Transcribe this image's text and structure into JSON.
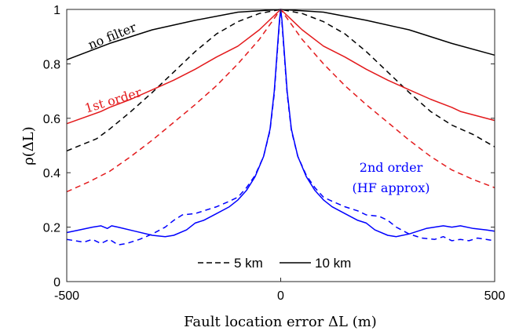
{
  "chart_data": {
    "type": "line",
    "title": "",
    "xlabel": "Fault location error ΔL (m)",
    "ylabel": "ρ(ΔL)",
    "xlim": [
      -500,
      500
    ],
    "ylim": [
      0,
      1
    ],
    "xticks": [
      "-500",
      "0",
      "500"
    ],
    "yticks": [
      "0",
      "0.2",
      "0.4",
      "0.6",
      "0.8",
      "1"
    ],
    "grid": false,
    "legend": {
      "placement": "bottom-center",
      "entries": [
        {
          "label": "5 km",
          "style": "dashed"
        },
        {
          "label": "10 km",
          "style": "solid"
        }
      ]
    },
    "annotations": [
      {
        "text": "no filter",
        "color": "#000000"
      },
      {
        "text": "1st order",
        "color": "#e31a1c"
      },
      {
        "lines": [
          "2nd order",
          "(HF approx)"
        ],
        "color": "#0000ff"
      }
    ],
    "series": [
      {
        "filter": "no filter",
        "length": "10 km",
        "color": "#000000",
        "dash": "solid",
        "x": [
          -500,
          -400,
          -300,
          -200,
          -100,
          0,
          100,
          200,
          300,
          400,
          500
        ],
        "y": [
          0.815,
          0.875,
          0.925,
          0.96,
          0.99,
          1.0,
          0.99,
          0.96,
          0.925,
          0.875,
          0.832
        ]
      },
      {
        "filter": "no filter",
        "length": "5 km",
        "color": "#000000",
        "dash": "dashed",
        "x": [
          -500,
          -430,
          -400,
          -350,
          -300,
          -250,
          -200,
          -150,
          -100,
          -50,
          0,
          50,
          100,
          150,
          200,
          250,
          300,
          350,
          400,
          450,
          500
        ],
        "y": [
          0.48,
          0.525,
          0.56,
          0.625,
          0.695,
          0.77,
          0.845,
          0.91,
          0.955,
          0.985,
          1.0,
          0.985,
          0.955,
          0.91,
          0.845,
          0.77,
          0.695,
          0.625,
          0.575,
          0.54,
          0.495
        ]
      },
      {
        "filter": "1st order",
        "length": "10 km",
        "color": "#e31a1c",
        "dash": "solid",
        "x": [
          -500,
          -420,
          -400,
          -350,
          -300,
          -250,
          -200,
          -150,
          -100,
          -50,
          0,
          50,
          100,
          150,
          200,
          250,
          300,
          350,
          400,
          420,
          500
        ],
        "y": [
          0.58,
          0.625,
          0.64,
          0.67,
          0.705,
          0.74,
          0.78,
          0.825,
          0.865,
          0.925,
          1.0,
          0.925,
          0.865,
          0.825,
          0.78,
          0.74,
          0.705,
          0.67,
          0.64,
          0.625,
          0.592
        ]
      },
      {
        "filter": "1st order",
        "length": "5 km",
        "color": "#e31a1c",
        "dash": "dashed",
        "x": [
          -500,
          -450,
          -400,
          -350,
          -300,
          -250,
          -200,
          -150,
          -100,
          -50,
          0,
          50,
          100,
          150,
          200,
          250,
          300,
          350,
          400,
          450,
          500
        ],
        "y": [
          0.33,
          0.365,
          0.405,
          0.46,
          0.52,
          0.585,
          0.65,
          0.72,
          0.8,
          0.89,
          1.0,
          0.89,
          0.8,
          0.72,
          0.65,
          0.585,
          0.52,
          0.46,
          0.41,
          0.375,
          0.345
        ]
      },
      {
        "filter": "2nd order (HF approx)",
        "length": "10 km",
        "color": "#0000ff",
        "dash": "solid",
        "x": [
          -500,
          -470,
          -440,
          -420,
          -405,
          -395,
          -380,
          -340,
          -300,
          -270,
          -250,
          -220,
          -200,
          -180,
          -150,
          -120,
          -100,
          -80,
          -60,
          -40,
          -25,
          -15,
          -8,
          -3,
          0,
          3,
          8,
          15,
          25,
          40,
          60,
          80,
          100,
          120,
          150,
          180,
          200,
          220,
          250,
          270,
          300,
          340,
          380,
          400,
          420,
          450,
          480,
          500
        ],
        "y": [
          0.18,
          0.19,
          0.2,
          0.205,
          0.195,
          0.205,
          0.2,
          0.185,
          0.17,
          0.165,
          0.17,
          0.19,
          0.215,
          0.225,
          0.25,
          0.275,
          0.3,
          0.335,
          0.385,
          0.46,
          0.56,
          0.7,
          0.85,
          0.96,
          1.0,
          0.96,
          0.85,
          0.7,
          0.56,
          0.46,
          0.385,
          0.335,
          0.3,
          0.275,
          0.25,
          0.225,
          0.215,
          0.19,
          0.17,
          0.165,
          0.175,
          0.195,
          0.205,
          0.2,
          0.205,
          0.195,
          0.19,
          0.185
        ]
      },
      {
        "filter": "2nd order (HF approx)",
        "length": "5 km",
        "color": "#0000ff",
        "dash": "dashed",
        "x": [
          -500,
          -460,
          -440,
          -420,
          -400,
          -380,
          -360,
          -330,
          -300,
          -270,
          -250,
          -230,
          -200,
          -180,
          -150,
          -120,
          -100,
          -80,
          -60,
          -40,
          -25,
          -15,
          -8,
          -3,
          0,
          3,
          8,
          15,
          25,
          40,
          60,
          80,
          100,
          120,
          150,
          180,
          200,
          230,
          250,
          270,
          300,
          330,
          360,
          380,
          400,
          420,
          440,
          460,
          500
        ],
        "y": [
          0.155,
          0.145,
          0.155,
          0.14,
          0.155,
          0.135,
          0.14,
          0.155,
          0.175,
          0.2,
          0.225,
          0.245,
          0.25,
          0.26,
          0.275,
          0.295,
          0.31,
          0.345,
          0.39,
          0.46,
          0.555,
          0.69,
          0.84,
          0.95,
          1.0,
          0.95,
          0.84,
          0.69,
          0.555,
          0.46,
          0.39,
          0.345,
          0.31,
          0.295,
          0.275,
          0.26,
          0.245,
          0.24,
          0.225,
          0.2,
          0.175,
          0.16,
          0.155,
          0.165,
          0.15,
          0.155,
          0.15,
          0.16,
          0.15
        ]
      }
    ]
  }
}
